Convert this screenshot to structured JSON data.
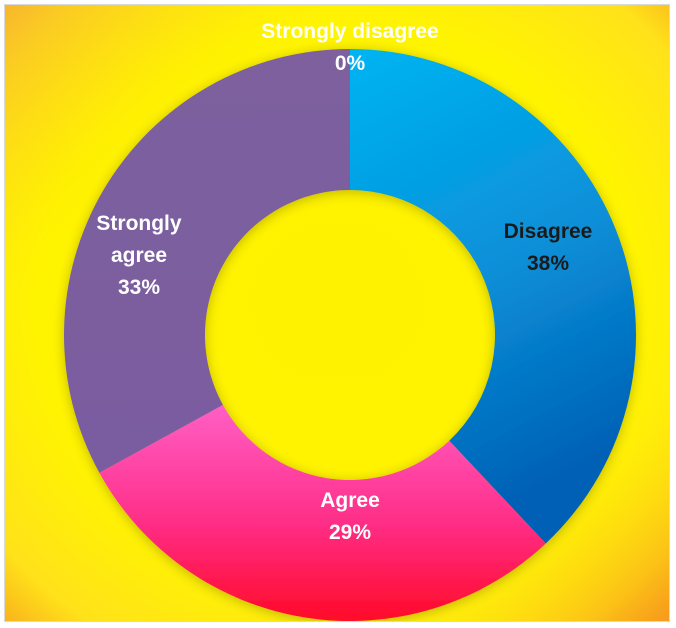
{
  "chart_data": {
    "type": "pie",
    "variant": "donut",
    "title": "",
    "categories": [
      "Strongly disagree",
      "Disagree",
      "Agree",
      "Strongly agree"
    ],
    "values": [
      0,
      38,
      29,
      33
    ],
    "series": [
      {
        "values": [
          0,
          38,
          29,
          33
        ],
        "percent_labels": [
          "0%",
          "38%",
          "29%",
          "33%"
        ]
      }
    ],
    "slice_label_lines": [
      [
        "Strongly disagree",
        "0%"
      ],
      [
        "Disagree",
        "38%"
      ],
      [
        "Agree",
        "29%"
      ],
      [
        "Strongly",
        "agree",
        "33%"
      ]
    ],
    "colors": {
      "Strongly disagree": "#ffffff",
      "Disagree": "#00b0f0",
      "Agree": "#ff1a7a",
      "Strongly agree": "#7e5e9e"
    },
    "label_colors": {
      "Strongly disagree": "#ffffff",
      "Disagree": "#1a1a1a",
      "Agree": "#ffffff",
      "Strongly agree": "#ffffff"
    },
    "background": {
      "colors": [
        "#f9c846",
        "#fff300",
        "#f7941d"
      ]
    },
    "legend": "none",
    "grid": false
  }
}
